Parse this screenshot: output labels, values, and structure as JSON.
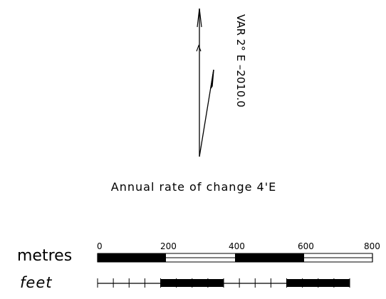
{
  "declination": {
    "label": "VAR  2° E  –2010.0"
  },
  "annual_change": {
    "label": "Annual rate of change 4'E"
  },
  "scale_bar": {
    "metres": {
      "label": "metres",
      "ticks": [
        "0",
        "200",
        "400",
        "600",
        "800"
      ]
    },
    "feet": {
      "label": "feet"
    }
  }
}
